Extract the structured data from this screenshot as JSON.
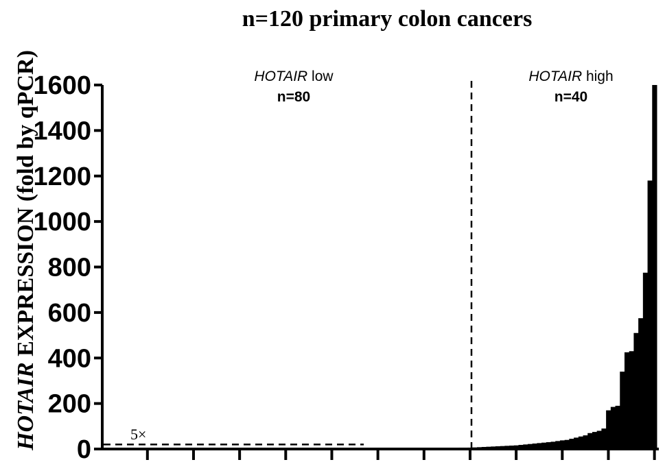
{
  "chart_data": {
    "type": "bar",
    "title": "n=120 primary colon cancers",
    "ylabel_italic": "HOTAIR",
    "ylabel_rest": " EXPRESSION (fold by qPCR)",
    "ylim": [
      0,
      1600
    ],
    "yticks": [
      0,
      200,
      400,
      600,
      800,
      1000,
      1200,
      1400,
      1600
    ],
    "threshold": {
      "value": 20,
      "label": "5×"
    },
    "groups": [
      {
        "name_italic": "HOTAIR",
        "name_rest": " low",
        "n_label": "n=80",
        "count": 80
      },
      {
        "name_italic": "HOTAIR",
        "name_rest": " high",
        "n_label": "n=40",
        "count": 40
      }
    ],
    "values": [
      0.2,
      0.2,
      0.3,
      0.3,
      0.4,
      0.4,
      0.5,
      0.5,
      0.6,
      0.6,
      0.7,
      0.7,
      0.8,
      0.9,
      1.0,
      1.0,
      1.1,
      1.2,
      1.3,
      1.4,
      1.5,
      1.6,
      1.7,
      1.8,
      1.9,
      2.0,
      2.1,
      2.2,
      2.3,
      2.4,
      2.5,
      2.6,
      2.7,
      2.8,
      2.9,
      3.0,
      3.1,
      3.2,
      3.3,
      3.4,
      3.5,
      3.6,
      3.7,
      3.8,
      3.9,
      4.0,
      4.1,
      4.2,
      4.3,
      4.4,
      4.5,
      4.6,
      4.7,
      4.8,
      4.9,
      5.0,
      5.0,
      5.1,
      5.1,
      5.2,
      5.2,
      5.3,
      5.3,
      5.4,
      5.4,
      5.5,
      5.5,
      5.6,
      5.6,
      5.7,
      5.7,
      5.8,
      5.8,
      5.9,
      5.9,
      6.0,
      6.0,
      6.1,
      6.1,
      6.2,
      7,
      8,
      9,
      10,
      11,
      12,
      13,
      14,
      15,
      16,
      18,
      20,
      22,
      24,
      26,
      28,
      30,
      32,
      35,
      38,
      40,
      45,
      50,
      55,
      60,
      70,
      75,
      80,
      90,
      170,
      185,
      190,
      340,
      425,
      430,
      510,
      575,
      775,
      1180,
      1600
    ]
  }
}
